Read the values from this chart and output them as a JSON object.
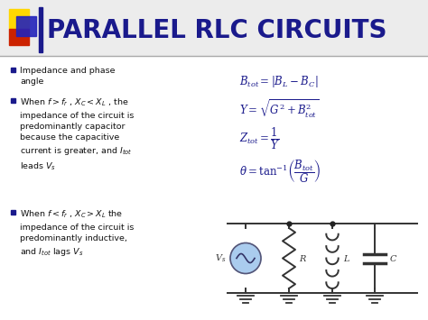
{
  "title": "PARALLEL RLC CIRCUITS",
  "title_color": "#1a1a8c",
  "title_fontsize": 20,
  "bg_color": "#ffffff",
  "bullet_square_color": "#1a1a8c",
  "accent_yellow": "#FFD700",
  "accent_red": "#CC2200",
  "accent_blue": "#2222bb",
  "bullets": [
    "Impedance and phase\nangle",
    "When $f > f_r$ , $X_C < X_L$ , the\nimpedance of the circuit is\npredominantly capacitor\nbecause the capacitive\ncurrent is greater, and $I_{tot}$\nleads $V_s$",
    "When $f < f_r$ , $X_C > X_L$ the\nimpedance of the circuit is\npredominantly inductive,\nand $I_{tot}$ lags $V_s$"
  ],
  "eq_color": "#1a1a8c",
  "text_color": "#111111",
  "circuit_wire_color": "#333333",
  "vs_fill": "#aaccee",
  "ground_color": "#555555"
}
